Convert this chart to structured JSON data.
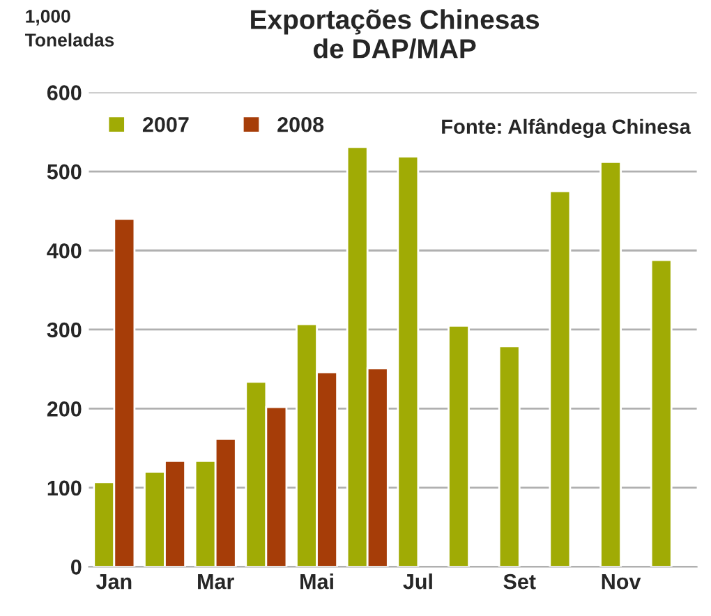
{
  "chart_data": {
    "type": "bar",
    "title": "Exportações Chinesas\nde DAP/MAP",
    "ylabel": "1,000\nToneladas",
    "categories": [
      "Jan",
      null,
      "Mar",
      null,
      "Mai",
      null,
      "Jul",
      null,
      "Set",
      null,
      "Nov",
      null
    ],
    "series": [
      {
        "name": "2007",
        "color": "#a0ab05",
        "values": [
          107,
          120,
          134,
          234,
          307,
          531,
          519,
          305,
          279,
          475,
          512,
          388
        ]
      },
      {
        "name": "2008",
        "color": "#a63d08",
        "values": [
          440,
          134,
          162,
          202,
          246,
          251,
          null,
          null,
          null,
          null,
          null,
          null
        ]
      }
    ],
    "ylim": [
      0,
      600
    ],
    "yticks": [
      0,
      100,
      200,
      300,
      400,
      500,
      600
    ],
    "grid": "y",
    "legend": "top left",
    "annotations": [
      "Fonte: Alfândega Chinesa"
    ]
  }
}
